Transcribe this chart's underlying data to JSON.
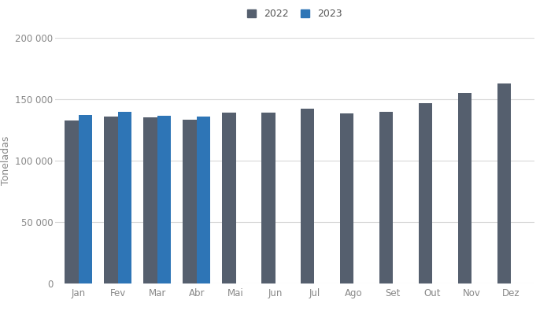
{
  "months": [
    "Jan",
    "Fev",
    "Mar",
    "Abr",
    "Mai",
    "Jun",
    "Jul",
    "Ago",
    "Set",
    "Out",
    "Nov",
    "Dez"
  ],
  "values_2022": [
    133000,
    136000,
    135000,
    133500,
    139000,
    139000,
    142000,
    138500,
    140000,
    147000,
    155000,
    163000
  ],
  "values_2023": [
    137000,
    139500,
    136500,
    136000,
    null,
    null,
    null,
    null,
    null,
    null,
    null,
    null
  ],
  "color_2022": "#555f6e",
  "color_2023": "#2e75b6",
  "ylabel": "Toneladas",
  "ylim": [
    0,
    200000
  ],
  "yticks": [
    0,
    50000,
    100000,
    150000,
    200000
  ],
  "ytick_labels": [
    "0",
    "50 000",
    "100 000",
    "150 000",
    "200 000"
  ],
  "legend_2022": "2022",
  "legend_2023": "2023",
  "bar_width": 0.35,
  "background_color": "#ffffff",
  "grid_color": "#d9d9d9",
  "axis_fontsize": 9,
  "tick_fontsize": 8.5,
  "legend_fontsize": 9
}
